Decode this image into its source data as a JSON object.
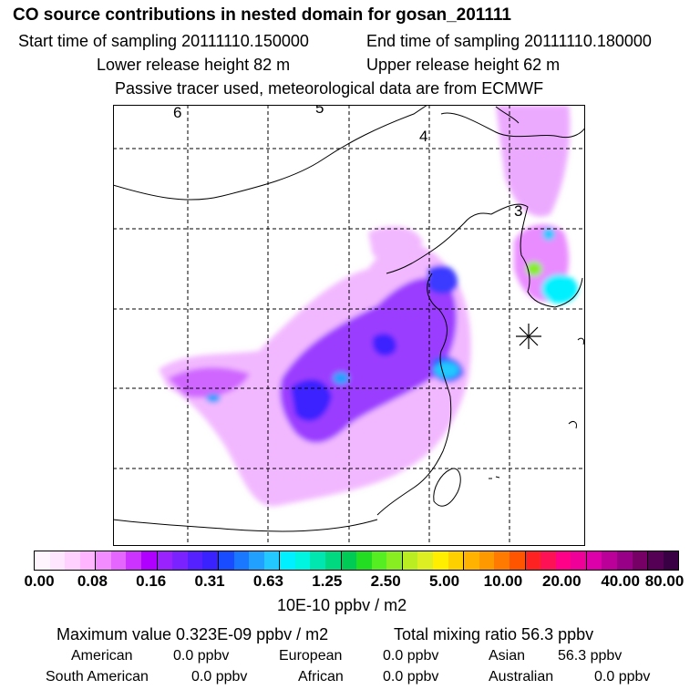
{
  "header": {
    "title": "CO  source contributions in nested domain for gosan_201111",
    "start_label": "Start time of sampling 20111110.150000",
    "end_label": "End time of sampling 20111110.180000",
    "lower_label": "Lower release height   82 m",
    "upper_label": "Upper release height   62 m",
    "tracer_label": "Passive tracer used, meteorological data are from ECMWF"
  },
  "map": {
    "region_labels": [
      "6",
      "5",
      "4",
      "3"
    ],
    "receptor_marker": "receptor-star"
  },
  "chart_data": {
    "type": "heatmap",
    "title": "CO  source contributions in nested domain for gosan_201111",
    "units": "10E-10 ppbv / m2",
    "grid": true,
    "colorbar": {
      "tick_labels": [
        "0.00",
        "0.08",
        "0.16",
        "0.31",
        "0.63",
        "1.25",
        "2.50",
        "5.00",
        "10.00",
        "20.00",
        "40.00",
        "80.00"
      ],
      "colors": [
        "#fff5ff",
        "#ffe6ff",
        "#ffd1ff",
        "#ffb5ff",
        "#f28cff",
        "#e466ff",
        "#cc33ff",
        "#b000ff",
        "#9a22ff",
        "#7a22ff",
        "#5522ff",
        "#3a22ff",
        "#1a4cff",
        "#1a77ff",
        "#22a0ff",
        "#22c8ff",
        "#00f0ff",
        "#00f5e0",
        "#00e6b0",
        "#00d980",
        "#00cc55",
        "#22dd22",
        "#55ee22",
        "#88ee22",
        "#bbee22",
        "#ddee22",
        "#ffee00",
        "#ffd000",
        "#ffb300",
        "#ff9900",
        "#ff7a00",
        "#ff5500",
        "#ff2222",
        "#ff1155",
        "#ff0088",
        "#ee0099",
        "#dd00aa",
        "#bb0099",
        "#990088",
        "#770066",
        "#550055",
        "#3a0044"
      ]
    },
    "max_value_label": "Maximum value  0.323E-09 ppbv / m2",
    "total_mixing_label": "Total mixing ratio       56.3 ppbv",
    "contributions": [
      {
        "name": "American",
        "value": "0.0 ppbv"
      },
      {
        "name": "European",
        "value": "0.0 ppbv"
      },
      {
        "name": "Asian",
        "value": "56.3 ppbv"
      },
      {
        "name": "South American",
        "value": "0.0 ppbv"
      },
      {
        "name": "African",
        "value": "0.0 ppbv"
      },
      {
        "name": "Australian",
        "value": "0.0 ppbv"
      }
    ]
  }
}
